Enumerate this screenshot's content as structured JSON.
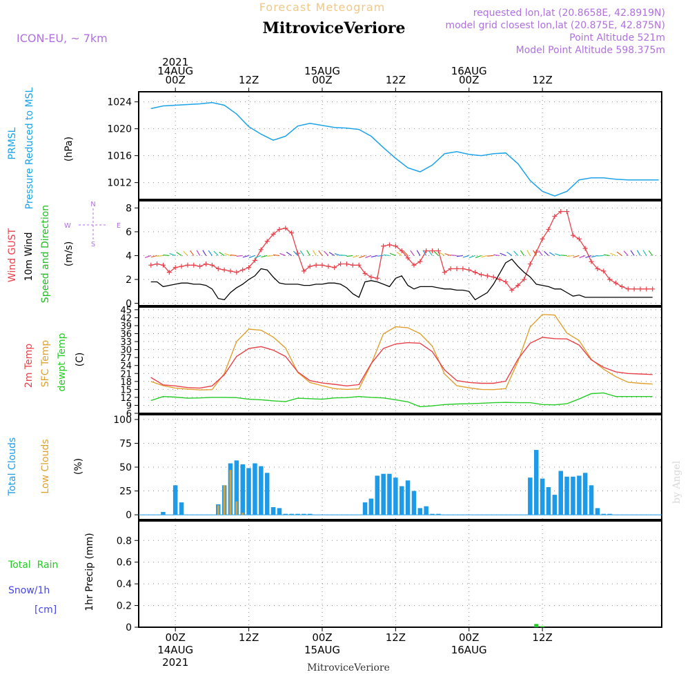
{
  "header": {
    "subtitle": "Forecast Meteogram",
    "station": "MitroviceVeriore",
    "model": "ICON-EU, ~ 7km",
    "requested": "requested lon,lat (20.8658E, 42.8919N)",
    "closest": "closest lon,lat (20.875E, 42.875N)",
    "closest_prefix": "model grid",
    "point_alt": "Point Altitude 521m",
    "model_alt": "Model Point Altitude 598.375m",
    "credit": "by Angel",
    "footer": "MitroviceVeriore"
  },
  "colors": {
    "pressure": "#1aa3e8",
    "gust": "#e8404a",
    "wind": "#000000",
    "dir": "#22bb22",
    "temp2m": "#e84048",
    "sfc": "#e0a030",
    "dew": "#22cc22",
    "total_clouds": "#1e9be8",
    "low_clouds": "#e0a030",
    "rain": "#22cc22",
    "snow": "#4444ee",
    "title_purple": "#b070e0",
    "subtitle": "#f0c888"
  },
  "chart_data": [
    {
      "type": "line",
      "name": "pressure",
      "ylabel_lines": [
        "PRMSL",
        "Pressure Reduced to MSL"
      ],
      "unit": "(hPa)",
      "x_unit": "hours from 2021-08-14 00Z",
      "ylim": [
        1009.5,
        1025.5
      ],
      "yticks": [
        1012,
        1016,
        1020,
        1024
      ],
      "series": [
        {
          "name": "PRMSL",
          "x": [
            -4,
            -2,
            0,
            2,
            4,
            6,
            8,
            10,
            12,
            14,
            16,
            18,
            20,
            22,
            24,
            26,
            28,
            30,
            32,
            34,
            36,
            38,
            40,
            42,
            44,
            46,
            48,
            50,
            52,
            54,
            56,
            58,
            60,
            62,
            64,
            66,
            68,
            70,
            72,
            74,
            76,
            78,
            79
          ],
          "values": [
            1023.0,
            1023.4,
            1023.5,
            1023.6,
            1023.7,
            1023.9,
            1023.5,
            1022.2,
            1020.3,
            1019.2,
            1018.3,
            1018.9,
            1020.4,
            1020.8,
            1020.5,
            1020.2,
            1020.1,
            1019.9,
            1018.9,
            1017.2,
            1015.6,
            1014.2,
            1013.6,
            1014.6,
            1016.3,
            1016.6,
            1016.2,
            1016.0,
            1016.3,
            1016.4,
            1014.8,
            1012.3,
            1010.7,
            1010.0,
            1010.7,
            1012.4,
            1012.7,
            1012.7,
            1012.5,
            1012.4,
            1012.4,
            1012.4,
            1012.4
          ]
        }
      ]
    },
    {
      "type": "line",
      "name": "wind",
      "ylabel_lines": [
        "Wind GUST",
        "10m Wind",
        "Speed and Direction"
      ],
      "unit": "(m/s)",
      "compass": {
        "n": "N",
        "s": "S",
        "e": "E",
        "w": "W"
      },
      "ylim": [
        -0.2,
        8.6
      ],
      "yticks": [
        0,
        2,
        4,
        6,
        8
      ],
      "series": [
        {
          "name": "Wind GUST",
          "x": [
            -4,
            -3,
            -2,
            -1,
            0,
            1,
            2,
            3,
            4,
            5,
            6,
            7,
            8,
            9,
            10,
            11,
            12,
            13,
            14,
            15,
            16,
            17,
            18,
            19,
            20,
            21,
            22,
            23,
            24,
            25,
            26,
            27,
            28,
            29,
            30,
            31,
            32,
            33,
            34,
            35,
            36,
            37,
            38,
            39,
            40,
            41,
            42,
            43,
            44,
            45,
            46,
            47,
            48,
            49,
            50,
            51,
            52,
            53,
            54,
            55,
            56,
            57,
            58,
            59,
            60,
            61,
            62,
            63,
            64,
            65,
            66,
            67,
            68,
            69,
            70,
            71,
            72,
            73,
            74,
            75,
            76,
            77,
            78
          ],
          "values": [
            3.2,
            3.3,
            3.2,
            2.6,
            3.0,
            3.1,
            3.2,
            3.2,
            3.1,
            3.3,
            3.2,
            2.9,
            2.8,
            2.7,
            2.6,
            2.8,
            3.0,
            3.6,
            4.5,
            5.2,
            5.8,
            6.2,
            6.3,
            5.9,
            4.2,
            2.7,
            3.1,
            3.2,
            3.2,
            3.1,
            3.0,
            3.3,
            3.3,
            3.2,
            3.2,
            2.5,
            2.2,
            2.1,
            4.8,
            4.9,
            4.8,
            4.4,
            3.8,
            3.2,
            3.5,
            4.4,
            4.4,
            4.4,
            2.6,
            2.9,
            2.9,
            2.9,
            2.8,
            2.6,
            2.4,
            2.3,
            2.2,
            2.0,
            1.8,
            1.1,
            1.5,
            2.0,
            3.3,
            4.3,
            5.4,
            6.2,
            7.3,
            7.7,
            7.7,
            5.7,
            5.4,
            4.6,
            3.5,
            2.9,
            2.7,
            2.0,
            1.7,
            1.4,
            1.2,
            1.2,
            1.2,
            1.2,
            1.2
          ]
        },
        {
          "name": "10m Wind",
          "x": [
            -4,
            -3,
            -2,
            -1,
            0,
            1,
            2,
            3,
            4,
            5,
            6,
            7,
            8,
            9,
            10,
            11,
            12,
            13,
            14,
            15,
            16,
            17,
            18,
            19,
            20,
            21,
            22,
            23,
            24,
            25,
            26,
            27,
            28,
            29,
            30,
            31,
            32,
            33,
            34,
            35,
            36,
            37,
            38,
            39,
            40,
            41,
            42,
            43,
            44,
            45,
            46,
            47,
            48,
            49,
            50,
            51,
            52,
            53,
            54,
            55,
            56,
            57,
            58,
            59,
            60,
            61,
            62,
            63,
            64,
            65,
            66,
            67,
            68,
            69,
            70,
            71,
            72,
            73,
            74,
            75,
            76,
            77,
            78
          ],
          "values": [
            1.8,
            1.8,
            1.4,
            1.5,
            1.6,
            1.7,
            1.7,
            1.6,
            1.6,
            1.5,
            1.2,
            0.4,
            0.3,
            0.9,
            1.3,
            1.6,
            2.0,
            2.3,
            2.9,
            2.8,
            2.2,
            1.7,
            1.6,
            1.6,
            1.6,
            1.5,
            1.5,
            1.6,
            1.6,
            1.7,
            1.7,
            1.6,
            1.3,
            0.8,
            0.5,
            1.8,
            1.9,
            1.8,
            1.6,
            1.4,
            2.1,
            2.3,
            1.5,
            1.2,
            1.4,
            1.4,
            1.4,
            1.3,
            1.2,
            1.2,
            1.1,
            1.1,
            1.0,
            0.3,
            0.6,
            0.9,
            1.6,
            2.5,
            3.4,
            3.7,
            3.1,
            2.6,
            2.2,
            1.6,
            1.5,
            1.4,
            1.2,
            1.2,
            0.9,
            0.6,
            0.7,
            0.5,
            0.5,
            0.5,
            0.5,
            0.5,
            0.5,
            0.5,
            0.5,
            0.5,
            0.5,
            0.5,
            0.5
          ]
        }
      ]
    },
    {
      "type": "line",
      "name": "temperature",
      "ylabel_lines": [
        "2m Temp",
        "SFC Temp",
        "dewpt Temp"
      ],
      "unit": "(C)",
      "ylim": [
        6,
        46
      ],
      "yticks": [
        6,
        9,
        12,
        15,
        18,
        21,
        24,
        27,
        30,
        33,
        36,
        39,
        42,
        45
      ],
      "series": [
        {
          "name": "2m Temp",
          "x": [
            -4,
            -2,
            0,
            2,
            4,
            6,
            8,
            10,
            12,
            14,
            16,
            18,
            20,
            22,
            24,
            26,
            28,
            30,
            32,
            34,
            36,
            38,
            40,
            42,
            44,
            46,
            48,
            50,
            52,
            54,
            56,
            58,
            60,
            62,
            64,
            66,
            68,
            70,
            72,
            74,
            76,
            78
          ],
          "values": [
            19.5,
            16.7,
            16.3,
            15.7,
            15.5,
            16.3,
            20.5,
            27.4,
            30.4,
            31.1,
            29.8,
            27.4,
            21.6,
            18.3,
            17.4,
            16.9,
            16.3,
            16.8,
            24.7,
            30.4,
            32.1,
            32.6,
            32.4,
            29.2,
            22.3,
            18.3,
            17.6,
            17.3,
            17.3,
            18.1,
            26.4,
            32.4,
            34.6,
            34.1,
            34.0,
            31.7,
            26.1,
            23.3,
            21.6,
            21.0,
            20.8,
            20.6
          ]
        },
        {
          "name": "SFC Temp",
          "x": [
            -4,
            -2,
            0,
            2,
            4,
            6,
            8,
            10,
            12,
            14,
            16,
            18,
            20,
            22,
            24,
            26,
            28,
            30,
            32,
            34,
            36,
            38,
            40,
            42,
            44,
            46,
            48,
            50,
            52,
            54,
            56,
            58,
            60,
            62,
            64,
            66,
            68,
            70,
            72,
            74,
            76,
            78
          ],
          "values": [
            18.0,
            16.4,
            15.5,
            15.1,
            14.8,
            14.9,
            21.0,
            33.0,
            37.7,
            37.3,
            34.7,
            30.6,
            21.4,
            17.6,
            16.4,
            15.3,
            15.0,
            15.2,
            24.5,
            35.9,
            38.6,
            38.2,
            36.0,
            31.3,
            20.8,
            16.4,
            15.6,
            15.0,
            14.9,
            15.3,
            25.5,
            38.5,
            43.2,
            43.0,
            36.2,
            33.4,
            26.3,
            22.6,
            19.8,
            17.7,
            17.3,
            17.0
          ]
        },
        {
          "name": "dewpt Temp",
          "x": [
            -4,
            -2,
            0,
            2,
            4,
            6,
            8,
            10,
            12,
            14,
            16,
            18,
            20,
            22,
            24,
            26,
            28,
            30,
            32,
            34,
            36,
            38,
            40,
            42,
            44,
            46,
            48,
            50,
            52,
            54,
            56,
            58,
            60,
            62,
            64,
            66,
            68,
            70,
            72,
            74,
            76,
            78
          ],
          "values": [
            10.8,
            12.3,
            12.1,
            11.7,
            11.8,
            12.0,
            12.0,
            11.9,
            11.3,
            11.1,
            10.7,
            10.4,
            11.7,
            11.5,
            11.3,
            11.8,
            11.9,
            12.3,
            12.0,
            11.8,
            11.1,
            10.3,
            8.5,
            8.8,
            9.3,
            9.5,
            9.6,
            9.8,
            10.0,
            10.1,
            10.0,
            10.0,
            9.3,
            9.2,
            9.6,
            11.4,
            13.4,
            13.7,
            12.3,
            12.3,
            12.3,
            12.3
          ]
        }
      ]
    },
    {
      "type": "bar",
      "name": "clouds",
      "ylabel_lines": [
        "Total Clouds",
        "Low Clouds"
      ],
      "unit": "(%)",
      "ylim": [
        -5,
        105
      ],
      "yticks": [
        0,
        25,
        50,
        75,
        100
      ],
      "series": [
        {
          "name": "Total Clouds",
          "x": [
            -2,
            0,
            1,
            7,
            8,
            9,
            10,
            11,
            12,
            13,
            14,
            15,
            16,
            17,
            18,
            19,
            20,
            21,
            22,
            31,
            32,
            33,
            34,
            35,
            36,
            37,
            38,
            39,
            40,
            41,
            42,
            43,
            58,
            59,
            60,
            61,
            62,
            63,
            64,
            65,
            66,
            67,
            68,
            69,
            70,
            71
          ],
          "values": [
            3,
            31,
            13,
            11,
            31,
            54,
            57,
            53,
            49,
            54,
            51,
            44,
            8,
            7,
            1,
            1,
            1,
            1,
            1,
            13,
            17,
            41,
            43,
            43,
            39,
            30,
            36,
            25,
            7,
            9,
            1,
            1,
            39,
            68,
            38,
            29,
            21,
            46,
            40,
            40,
            41,
            44,
            31,
            7,
            1,
            1
          ]
        },
        {
          "name": "Low Clouds",
          "x": [
            7,
            8,
            9,
            10,
            11
          ],
          "values": [
            10,
            31,
            47,
            14,
            2
          ]
        }
      ]
    },
    {
      "type": "bar",
      "name": "precip",
      "ylabel_lines": [
        "1hr Precip (mm)"
      ],
      "left_labels": {
        "rain": "Total  Rain",
        "snow": "Snow/1h",
        "cm": "[cm]"
      },
      "ylim": [
        0,
        0.98
      ],
      "yticks": [
        0,
        0.2,
        0.4,
        0.6,
        0.8
      ],
      "series": [
        {
          "name": "Total Rain",
          "x": [
            59,
            60
          ],
          "values": [
            0.03,
            0.01
          ]
        }
      ]
    }
  ],
  "time_axis": {
    "top": [
      {
        "hour": 0,
        "lines": [
          "2021",
          "14AUG",
          "00Z"
        ]
      },
      {
        "hour": 12,
        "lines": [
          "12Z"
        ]
      },
      {
        "hour": 24,
        "lines": [
          "15AUG",
          "00Z"
        ]
      },
      {
        "hour": 36,
        "lines": [
          "12Z"
        ]
      },
      {
        "hour": 48,
        "lines": [
          "16AUG",
          "00Z"
        ]
      },
      {
        "hour": 60,
        "lines": [
          "12Z"
        ]
      }
    ],
    "bottom": [
      {
        "hour": 0,
        "lines": [
          "00Z",
          "14AUG",
          "2021"
        ]
      },
      {
        "hour": 12,
        "lines": [
          "12Z"
        ]
      },
      {
        "hour": 24,
        "lines": [
          "00Z",
          "15AUG"
        ]
      },
      {
        "hour": 36,
        "lines": [
          "12Z"
        ]
      },
      {
        "hour": 48,
        "lines": [
          "00Z",
          "16AUG"
        ]
      },
      {
        "hour": 60,
        "lines": [
          "12Z"
        ]
      }
    ]
  }
}
